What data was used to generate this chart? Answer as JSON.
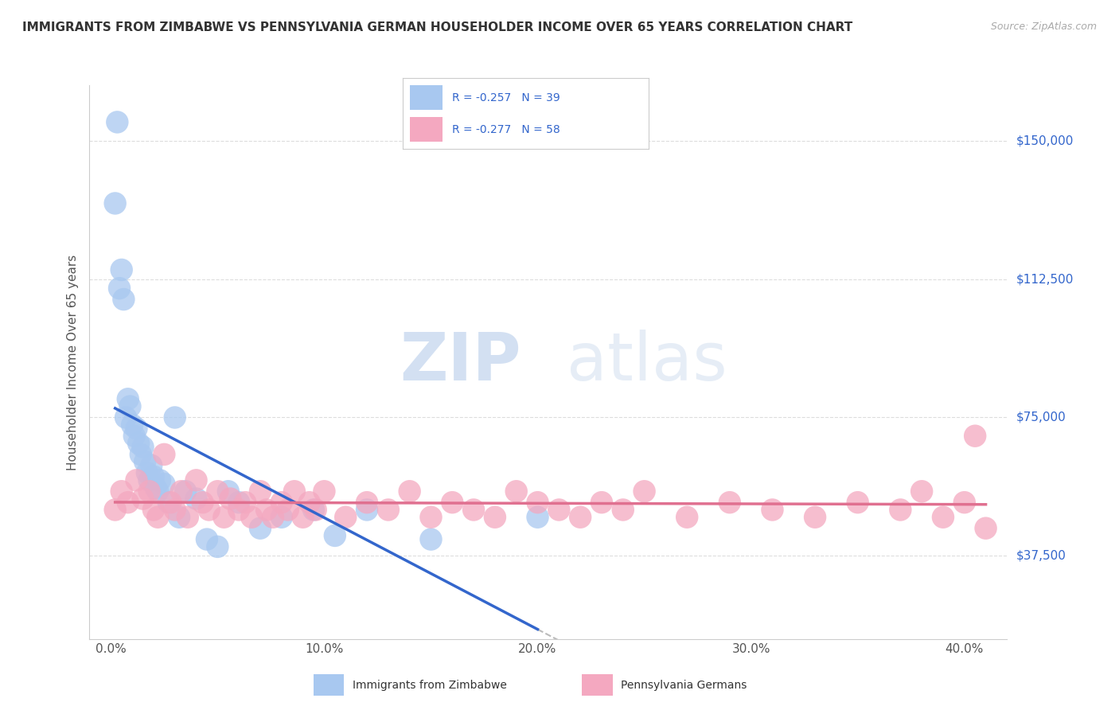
{
  "title": "IMMIGRANTS FROM ZIMBABWE VS PENNSYLVANIA GERMAN HOUSEHOLDER INCOME OVER 65 YEARS CORRELATION CHART",
  "source": "Source: ZipAtlas.com",
  "ylabel": "Householder Income Over 65 years",
  "xlabel_ticks": [
    "0.0%",
    "10.0%",
    "20.0%",
    "30.0%",
    "40.0%"
  ],
  "xlabel_vals": [
    0.0,
    0.1,
    0.2,
    0.3,
    0.4
  ],
  "ytick_labels": [
    "$37,500",
    "$75,000",
    "$112,500",
    "$150,000"
  ],
  "ytick_vals": [
    37500,
    75000,
    112500,
    150000
  ],
  "ylim": [
    15000,
    165000
  ],
  "xlim": [
    -0.01,
    0.42
  ],
  "r_zimbabwe": -0.257,
  "n_zimbabwe": 39,
  "r_penn_german": -0.277,
  "n_penn_german": 58,
  "zimbabwe_color": "#a8c8f0",
  "penn_german_color": "#f4a8c0",
  "zimbabwe_line_color": "#3366cc",
  "penn_german_line_color": "#e07090",
  "dashed_line_color": "#bbbbbb",
  "background_color": "#ffffff",
  "grid_color": "#dddddd",
  "label_color": "#3366cc",
  "watermark_zip": "ZIP",
  "watermark_atlas": "atlas",
  "zimbabwe_x": [
    0.002,
    0.003,
    0.004,
    0.005,
    0.006,
    0.007,
    0.008,
    0.009,
    0.01,
    0.011,
    0.012,
    0.013,
    0.014,
    0.015,
    0.016,
    0.017,
    0.018,
    0.019,
    0.02,
    0.021,
    0.022,
    0.023,
    0.025,
    0.027,
    0.03,
    0.032,
    0.035,
    0.04,
    0.045,
    0.05,
    0.055,
    0.06,
    0.07,
    0.08,
    0.095,
    0.105,
    0.12,
    0.15,
    0.2
  ],
  "zimbabwe_y": [
    133000,
    155000,
    110000,
    115000,
    107000,
    75000,
    80000,
    78000,
    73000,
    70000,
    72000,
    68000,
    65000,
    67000,
    63000,
    60000,
    58000,
    62000,
    59000,
    56000,
    55000,
    58000,
    57000,
    52000,
    75000,
    48000,
    55000,
    53000,
    42000,
    40000,
    55000,
    52000,
    45000,
    48000,
    50000,
    43000,
    50000,
    42000,
    48000
  ],
  "penn_german_x": [
    0.002,
    0.005,
    0.008,
    0.012,
    0.015,
    0.018,
    0.02,
    0.022,
    0.025,
    0.028,
    0.03,
    0.033,
    0.036,
    0.04,
    0.043,
    0.046,
    0.05,
    0.053,
    0.056,
    0.06,
    0.063,
    0.066,
    0.07,
    0.073,
    0.076,
    0.08,
    0.083,
    0.086,
    0.09,
    0.093,
    0.096,
    0.1,
    0.11,
    0.12,
    0.13,
    0.14,
    0.15,
    0.16,
    0.17,
    0.18,
    0.19,
    0.2,
    0.21,
    0.22,
    0.23,
    0.24,
    0.25,
    0.27,
    0.29,
    0.31,
    0.33,
    0.35,
    0.37,
    0.38,
    0.39,
    0.4,
    0.405,
    0.41
  ],
  "penn_german_y": [
    50000,
    55000,
    52000,
    58000,
    53000,
    55000,
    50000,
    48000,
    65000,
    52000,
    50000,
    55000,
    48000,
    58000,
    52000,
    50000,
    55000,
    48000,
    53000,
    50000,
    52000,
    48000,
    55000,
    50000,
    48000,
    52000,
    50000,
    55000,
    48000,
    52000,
    50000,
    55000,
    48000,
    52000,
    50000,
    55000,
    48000,
    52000,
    50000,
    48000,
    55000,
    52000,
    50000,
    48000,
    52000,
    50000,
    55000,
    48000,
    52000,
    50000,
    48000,
    52000,
    50000,
    55000,
    48000,
    52000,
    70000,
    45000
  ]
}
